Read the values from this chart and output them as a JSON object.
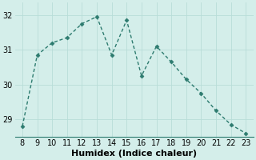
{
  "x": [
    8,
    9,
    10,
    11,
    12,
    13,
    14,
    15,
    16,
    17,
    18,
    19,
    20,
    21,
    22,
    23
  ],
  "y": [
    28.8,
    30.85,
    31.2,
    31.35,
    31.75,
    31.95,
    30.85,
    31.85,
    30.25,
    31.1,
    30.65,
    30.15,
    29.75,
    29.25,
    28.85,
    28.6
  ],
  "line_color": "#2d7b6f",
  "bg_color": "#d4eeea",
  "grid_color": "#b8ddd8",
  "xlabel": "Humidex (Indice chaleur)",
  "ylim": [
    28.5,
    32.35
  ],
  "xlim": [
    7.5,
    23.5
  ],
  "yticks": [
    29,
    30,
    31,
    32
  ],
  "xticks": [
    8,
    9,
    10,
    11,
    12,
    13,
    14,
    15,
    16,
    17,
    18,
    19,
    20,
    21,
    22,
    23
  ],
  "marker": "D",
  "markersize": 2.5,
  "linewidth": 1.0,
  "xlabel_fontsize": 8,
  "tick_fontsize": 7,
  "fig_width": 3.2,
  "fig_height": 2.0,
  "dpi": 100
}
